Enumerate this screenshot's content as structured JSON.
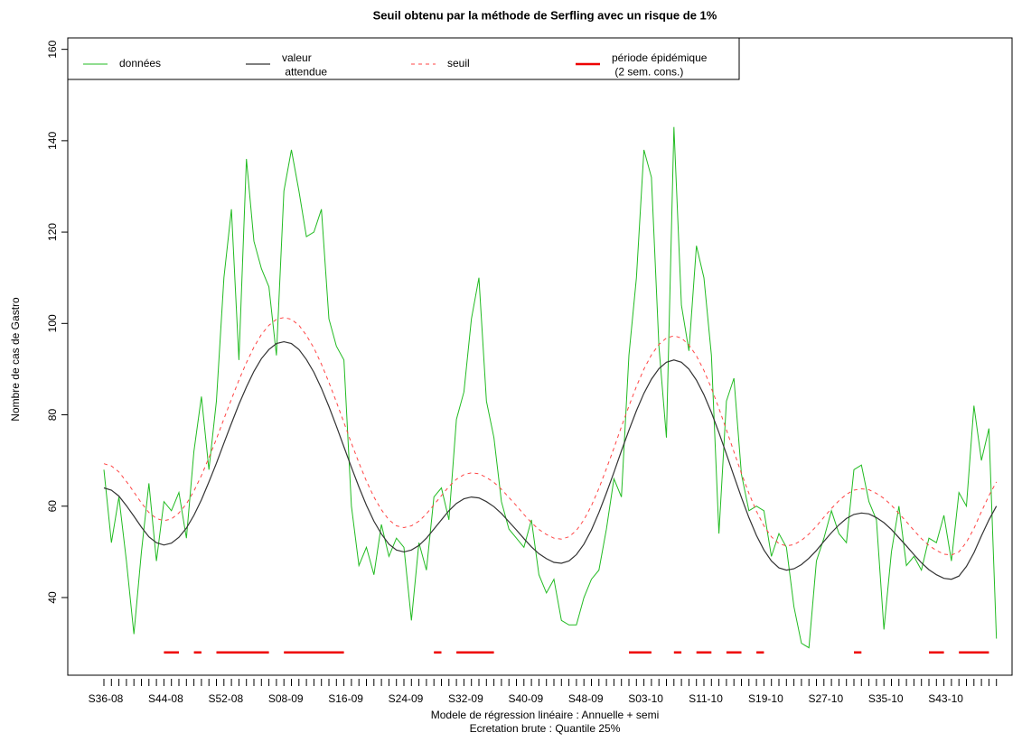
{
  "chart_data": {
    "type": "line",
    "title": "Seuil obtenu par la méthode de Serfling avec un risque de 1%",
    "xlabel": "Modele de régression linéaire : Annuelle + semi",
    "note": "Ecretation brute : Quantile 25%",
    "ylabel": "Nombre de cas de Gastro",
    "categories": [
      "S36-08",
      null,
      null,
      null,
      null,
      null,
      null,
      null,
      "S44-08",
      null,
      null,
      null,
      null,
      null,
      null,
      null,
      "S52-08",
      null,
      null,
      null,
      null,
      null,
      null,
      null,
      "S08-09",
      null,
      null,
      null,
      null,
      null,
      null,
      null,
      "S16-09",
      null,
      null,
      null,
      null,
      null,
      null,
      null,
      "S24-09",
      null,
      null,
      null,
      null,
      null,
      null,
      null,
      "S32-09",
      null,
      null,
      null,
      null,
      null,
      null,
      null,
      "S40-09",
      null,
      null,
      null,
      null,
      null,
      null,
      null,
      "S48-09",
      null,
      null,
      null,
      null,
      null,
      null,
      null,
      "S03-10",
      null,
      null,
      null,
      null,
      null,
      null,
      null,
      "S11-10",
      null,
      null,
      null,
      null,
      null,
      null,
      null,
      "S19-10",
      null,
      null,
      null,
      null,
      null,
      null,
      null,
      "S27-10",
      null,
      null,
      null,
      null,
      null,
      null,
      null,
      "S35-10",
      null,
      null,
      null,
      null,
      null,
      null,
      null,
      "S43-10",
      null,
      null,
      null,
      null,
      null,
      null,
      null
    ],
    "series": [
      {
        "name": "données",
        "color": "#22bb22",
        "style": "solid",
        "linewidth": 1,
        "values": [
          68,
          52,
          62,
          48,
          32,
          50,
          65,
          48,
          61,
          59,
          63,
          53,
          72,
          84,
          68,
          83,
          110,
          125,
          92,
          136,
          118,
          112,
          108,
          93,
          129,
          138,
          129,
          119,
          120,
          125,
          101,
          95,
          92,
          60,
          47,
          51,
          45,
          56,
          49,
          53,
          51,
          35,
          52,
          46,
          62,
          64,
          57,
          79,
          85,
          101,
          110,
          83,
          75,
          61,
          55,
          53,
          51,
          57,
          45,
          41,
          44,
          35,
          34,
          34,
          40,
          44,
          46,
          55,
          66,
          62,
          93,
          110,
          138,
          132,
          95,
          75,
          143,
          104,
          94,
          117,
          110,
          93,
          54,
          83,
          88,
          67,
          59,
          60,
          59,
          49,
          54,
          51,
          38,
          30,
          29,
          48,
          53,
          59,
          54,
          52,
          68,
          69,
          61,
          57,
          33,
          50,
          60,
          47,
          49,
          46,
          53,
          52,
          58,
          48,
          63,
          60,
          82,
          70,
          77,
          31
        ]
      },
      {
        "name": "valeur\n attendue",
        "color": "#333333",
        "style": "solid",
        "linewidth": 1.2,
        "values": [
          64,
          63.5,
          62.2,
          60.1,
          57.8,
          55.4,
          53.3,
          52.0,
          51.5,
          51.9,
          53.2,
          55.2,
          58.0,
          61.4,
          65.3,
          69.4,
          73.8,
          78.1,
          82.3,
          86.1,
          89.5,
          92.3,
          94.3,
          95.6,
          96,
          95.6,
          94.3,
          92.1,
          89.3,
          85.8,
          81.8,
          77.5,
          73.0,
          68.5,
          64.2,
          60.2,
          56.7,
          53.9,
          51.7,
          50.4,
          50,
          50.4,
          51.4,
          53.0,
          55.0,
          57.0,
          59.0,
          60.6,
          61.6,
          62,
          61.8,
          61.0,
          59.9,
          58.4,
          56.6,
          54.8,
          52.9,
          51.1,
          49.6,
          48.5,
          47.7,
          47.5,
          48.0,
          49.4,
          51.7,
          54.8,
          58.6,
          62.9,
          67.4,
          72.1,
          76.6,
          80.9,
          84.7,
          87.8,
          90.1,
          91.5,
          92,
          91.5,
          90.0,
          87.6,
          84.4,
          80.5,
          76.1,
          71.4,
          66.6,
          61.9,
          57.5,
          53.6,
          50.4,
          48.0,
          46.5,
          46,
          46.3,
          47.2,
          48.6,
          50.3,
          52.3,
          54.2,
          55.9,
          57.3,
          58.2,
          58.5,
          58.3,
          57.5,
          56.4,
          54.9,
          53.1,
          51.3,
          49.4,
          47.6,
          46.1,
          45.0,
          44.2,
          44,
          44.7,
          46.8,
          49.8,
          53.5,
          57.0,
          60
        ]
      },
      {
        "name": "seuil",
        "color": "#ff4444",
        "style": "dashed",
        "linewidth": 1,
        "values": [
          69.3,
          68.8,
          67.5,
          65.4,
          63.1,
          60.7,
          58.6,
          57.3,
          56.8,
          57.2,
          58.5,
          60.5,
          63.3,
          66.7,
          70.6,
          74.7,
          79.1,
          83.4,
          87.6,
          91.4,
          94.8,
          97.6,
          99.6,
          100.9,
          101.3,
          100.9,
          99.6,
          97.4,
          94.6,
          91.1,
          87.1,
          82.8,
          78.3,
          73.8,
          69.5,
          65.5,
          62.0,
          59.2,
          57.0,
          55.7,
          55.3,
          55.7,
          56.7,
          58.3,
          60.3,
          62.3,
          64.3,
          65.9,
          66.9,
          67.3,
          67.1,
          66.3,
          65.2,
          63.7,
          61.9,
          60.1,
          58.2,
          56.4,
          54.9,
          53.8,
          53.0,
          52.8,
          53.3,
          54.7,
          57.0,
          60.1,
          63.9,
          68.2,
          72.7,
          77.4,
          81.9,
          86.2,
          90.0,
          93.1,
          95.4,
          96.8,
          97.3,
          96.8,
          95.3,
          92.9,
          89.7,
          85.8,
          81.4,
          76.7,
          71.9,
          67.2,
          62.8,
          58.9,
          55.7,
          53.3,
          51.8,
          51.3,
          51.6,
          52.5,
          53.9,
          55.6,
          57.6,
          59.5,
          61.2,
          62.6,
          63.5,
          63.8,
          63.6,
          62.8,
          61.7,
          60.2,
          58.4,
          56.6,
          54.7,
          52.9,
          51.4,
          50.3,
          49.5,
          49.3,
          50.0,
          52.1,
          55.1,
          58.8,
          62.3,
          65.3
        ]
      },
      {
        "name": "période épidémique\n (2 sem. cons.)",
        "color": "#ee0000",
        "style": "solid",
        "linewidth": 2.5,
        "values": [
          null,
          null,
          null,
          null,
          null,
          null,
          null,
          null,
          28,
          28,
          28,
          null,
          28,
          28,
          null,
          28,
          28,
          28,
          28,
          28,
          28,
          28,
          28,
          null,
          28,
          28,
          28,
          28,
          28,
          28,
          28,
          28,
          28,
          null,
          null,
          null,
          null,
          null,
          null,
          null,
          null,
          null,
          null,
          null,
          28,
          28,
          null,
          28,
          28,
          28,
          28,
          28,
          28,
          null,
          null,
          null,
          null,
          null,
          null,
          null,
          null,
          null,
          null,
          null,
          null,
          null,
          null,
          null,
          null,
          null,
          28,
          28,
          28,
          28,
          null,
          null,
          28,
          28,
          null,
          28,
          28,
          28,
          null,
          28,
          28,
          28,
          null,
          28,
          28,
          null,
          null,
          null,
          null,
          null,
          null,
          null,
          null,
          null,
          null,
          null,
          28,
          28,
          null,
          null,
          null,
          null,
          null,
          null,
          null,
          null,
          28,
          28,
          28,
          null,
          28,
          28,
          28,
          28,
          28,
          null
        ]
      }
    ],
    "ylim": [
      23,
      162.5
    ],
    "yticks": [
      40,
      60,
      80,
      100,
      120,
      140,
      160
    ],
    "grid": false,
    "legend": "top"
  }
}
